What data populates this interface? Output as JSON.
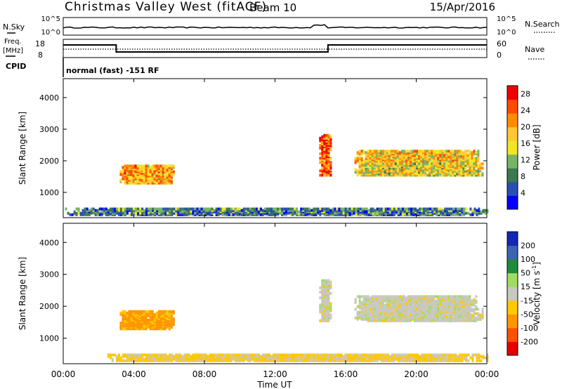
{
  "header": {
    "station": "Christmas Valley West (fitACF)",
    "beam": "Beam 10",
    "date": "15/Apr/2016"
  },
  "noise_panel": {
    "left_label": "N.Sky",
    "right_label": "N.Search",
    "left_top": "10^5",
    "left_bottom": "10^0",
    "right_top": "10^5",
    "right_bottom": "10^0"
  },
  "freq_panel": {
    "left_label_1": "Freq.",
    "left_label_2": "[MHz]",
    "left_top": "18",
    "left_bottom": "8",
    "right_label": "Nave",
    "right_top": "60",
    "right_bottom": "0",
    "cpid_label": "CPID",
    "cpid_text": "normal (fast) -151 RF"
  },
  "colors": {
    "power_scale": [
      "#0000ff",
      "#2850b4",
      "#3c7850",
      "#78b464",
      "#f0e628",
      "#ffc832",
      "#ff8c00",
      "#ff4a00",
      "#f00000"
    ],
    "velocity_scale": [
      "#e60000",
      "#ff5000",
      "#ff9600",
      "#ffc800",
      "#c8c8be",
      "#a0dc64",
      "#1e8c3c",
      "#3c64b4",
      "#1428b4"
    ],
    "ground_scatter": "#c8c8c0"
  },
  "chart_data": [
    {
      "type": "heatmap",
      "title": "Power",
      "ylabel": "Slant Range [km]",
      "x_ticks": [
        "00:00",
        "04:00",
        "08:00",
        "12:00",
        "16:00",
        "20:00",
        "00:00"
      ],
      "xlim_hours": [
        0,
        24
      ],
      "ylim": [
        200,
        4600
      ],
      "y_ticks": [
        1000,
        2000,
        3000,
        4000
      ],
      "colorbar": {
        "label": "Power [dB]",
        "ticks": [
          "4",
          "8",
          "12",
          "16",
          "20",
          "24",
          "28"
        ],
        "range": [
          0,
          30
        ]
      },
      "regions": [
        {
          "name": "morning patch",
          "t_start": 3.2,
          "t_end": 6.3,
          "range_km": [
            1250,
            1800
          ],
          "level": 20
        },
        {
          "name": "near-range band",
          "t_start": 0.1,
          "t_end": 24,
          "range_km": [
            250,
            450
          ],
          "level": 8
        },
        {
          "name": "dusk spike",
          "t_start": 14.5,
          "t_end": 15.1,
          "range_km": [
            1500,
            2800
          ],
          "level": 24
        },
        {
          "name": "evening upper band",
          "t_start": 16.5,
          "t_end": 23.5,
          "range_km": [
            1900,
            2300
          ],
          "level": 18
        },
        {
          "name": "evening lower band",
          "t_start": 16.5,
          "t_end": 23.8,
          "range_km": [
            1500,
            1900
          ],
          "level": 16
        }
      ]
    },
    {
      "type": "heatmap",
      "title": "Velocity",
      "ylabel": "Slant Range [km]",
      "xlabel": "Time UT",
      "x_ticks": [
        "00:00",
        "04:00",
        "08:00",
        "12:00",
        "16:00",
        "20:00",
        "00:00"
      ],
      "xlim_hours": [
        0,
        24
      ],
      "ylim": [
        200,
        4600
      ],
      "y_ticks": [
        1000,
        2000,
        3000,
        4000
      ],
      "colorbar": {
        "label": "Velocity [m s^-1]",
        "ticks": [
          "200",
          "100",
          "50",
          "15",
          "-15",
          "-50",
          "-100",
          "-200"
        ],
        "range": [
          -250,
          250
        ]
      },
      "regions": [
        {
          "name": "morning patch",
          "t_start": 3.2,
          "t_end": 6.3,
          "range_km": [
            1250,
            1800
          ],
          "velocity": -60
        },
        {
          "name": "near-range band",
          "t_start": 2.5,
          "t_end": 24,
          "range_km": [
            250,
            450
          ],
          "velocity": -20
        },
        {
          "name": "dusk spike",
          "t_start": 14.5,
          "t_end": 15.1,
          "range_km": [
            1500,
            2800
          ],
          "velocity": 0
        },
        {
          "name": "evening upper band",
          "t_start": 16.5,
          "t_end": 23.5,
          "range_km": [
            1900,
            2300
          ],
          "velocity": 0
        },
        {
          "name": "evening lower band",
          "t_start": 16.5,
          "t_end": 23.8,
          "range_km": [
            1500,
            1900
          ],
          "velocity": 0
        }
      ]
    }
  ]
}
